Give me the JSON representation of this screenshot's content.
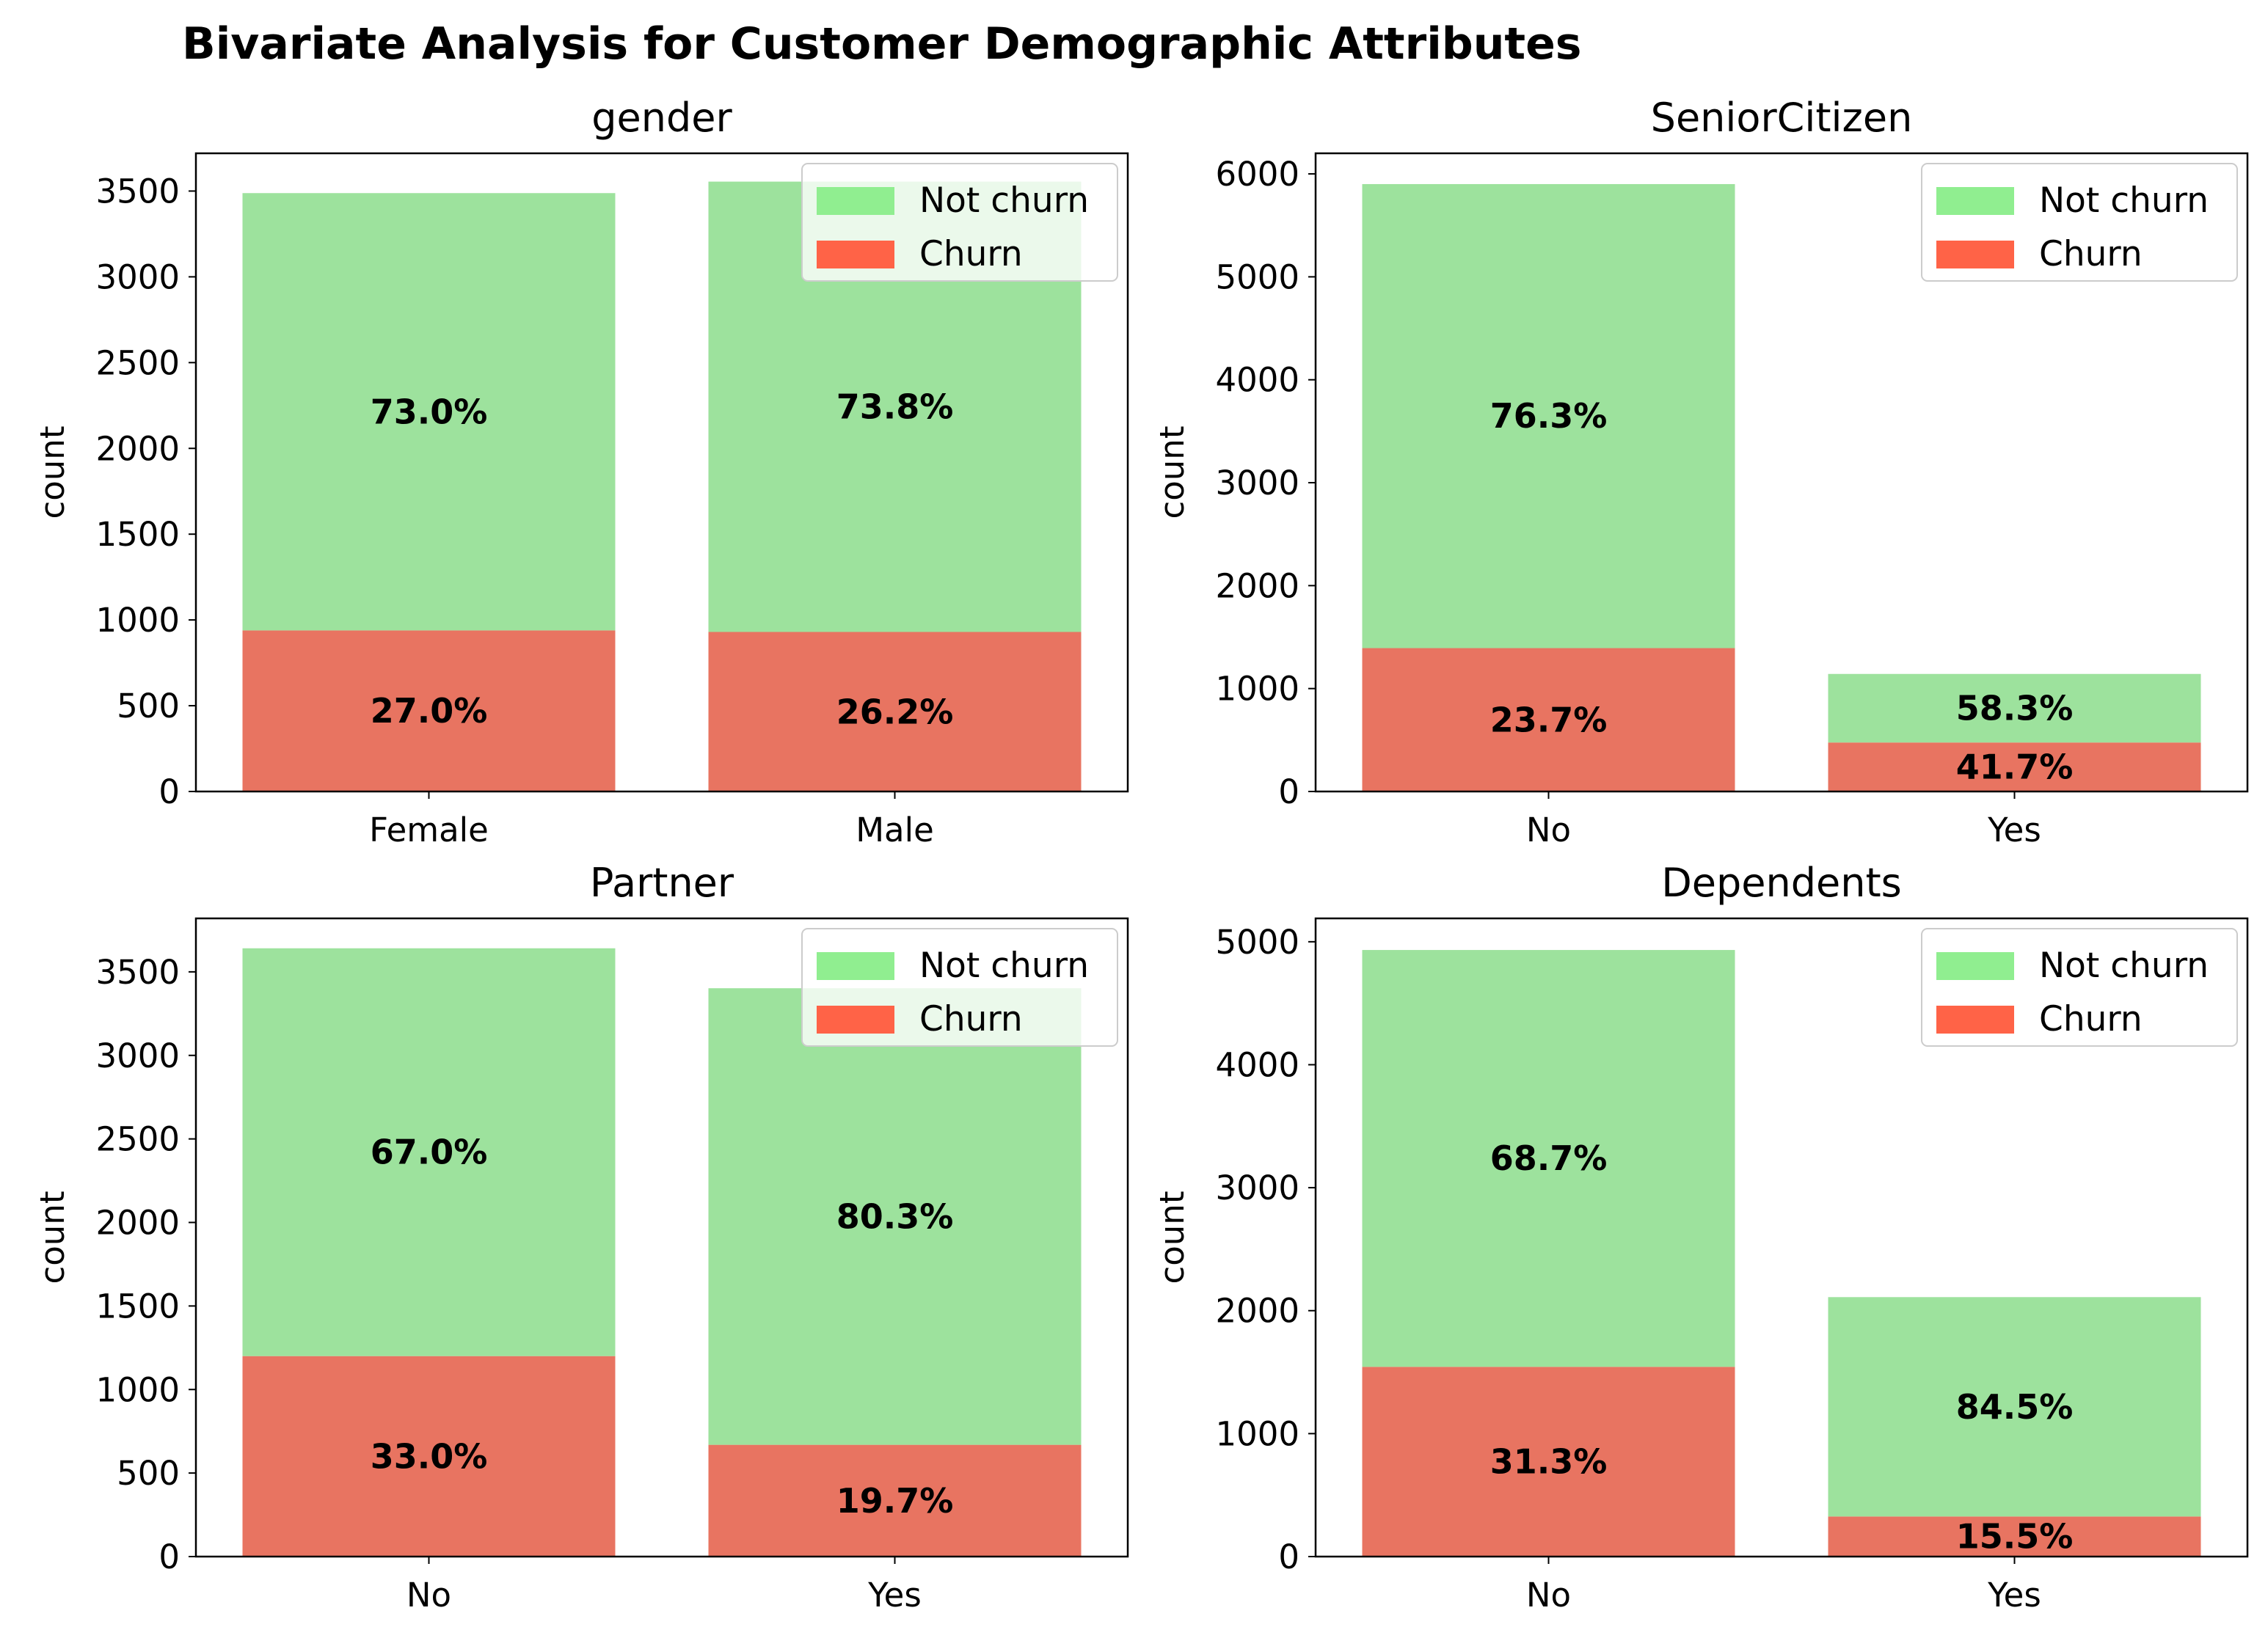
{
  "figure": {
    "title": "Bivariate Analysis for Customer Demographic Attributes"
  },
  "legend": {
    "not_churn_label": "Not churn",
    "churn_label": "Churn",
    "placement": "upper right"
  },
  "colors": {
    "not_churn": "#9de29d",
    "churn": "#e87461",
    "legend_not_churn": "#90ee90",
    "legend_churn": "#ff6347"
  },
  "chart_data": [
    {
      "type": "bar",
      "stacked": true,
      "title": "gender",
      "xlabel": "",
      "ylabel": "count",
      "categories": [
        "Female",
        "Male"
      ],
      "yticks": [
        0,
        500,
        1000,
        1500,
        2000,
        2500,
        3000,
        3500
      ],
      "ylim": [
        0,
        3720
      ],
      "series": [
        {
          "name": "Churn",
          "values": [
            939,
            930
          ],
          "labels": [
            "27.0%",
            "26.2%"
          ]
        },
        {
          "name": "Not churn",
          "values": [
            2549,
            2625
          ],
          "labels": [
            "73.0%",
            "73.8%"
          ]
        }
      ],
      "legend": "top-right",
      "grid": false
    },
    {
      "type": "bar",
      "stacked": true,
      "title": "SeniorCitizen",
      "xlabel": "",
      "ylabel": "count",
      "categories": [
        "No",
        "Yes"
      ],
      "yticks": [
        0,
        1000,
        2000,
        3000,
        4000,
        5000,
        6000
      ],
      "ylim": [
        0,
        6200
      ],
      "series": [
        {
          "name": "Churn",
          "values": [
            1393,
            476
          ],
          "labels": [
            "23.7%",
            "41.7%"
          ]
        },
        {
          "name": "Not churn",
          "values": [
            4508,
            666
          ],
          "labels": [
            "76.3%",
            "58.3%"
          ]
        }
      ],
      "legend": "top-right",
      "grid": false
    },
    {
      "type": "bar",
      "stacked": true,
      "title": "Partner",
      "xlabel": "",
      "ylabel": "count",
      "categories": [
        "No",
        "Yes"
      ],
      "yticks": [
        0,
        500,
        1000,
        1500,
        2000,
        2500,
        3000,
        3500
      ],
      "ylim": [
        0,
        3820
      ],
      "series": [
        {
          "name": "Churn",
          "values": [
            1200,
            669
          ],
          "labels": [
            "33.0%",
            "19.7%"
          ]
        },
        {
          "name": "Not churn",
          "values": [
            2441,
            2733
          ],
          "labels": [
            "67.0%",
            "80.3%"
          ]
        }
      ],
      "legend": "top-right",
      "grid": false
    },
    {
      "type": "bar",
      "stacked": true,
      "title": "Dependents",
      "xlabel": "",
      "ylabel": "count",
      "categories": [
        "No",
        "Yes"
      ],
      "yticks": [
        0,
        1000,
        2000,
        3000,
        4000,
        5000
      ],
      "ylim": [
        0,
        5190
      ],
      "series": [
        {
          "name": "Churn",
          "values": [
            1543,
            326
          ],
          "labels": [
            "31.3%",
            "15.5%"
          ]
        },
        {
          "name": "Not churn",
          "values": [
            3390,
            1784
          ],
          "labels": [
            "68.7%",
            "84.5%"
          ]
        }
      ],
      "legend": "top-right",
      "grid": false
    }
  ]
}
